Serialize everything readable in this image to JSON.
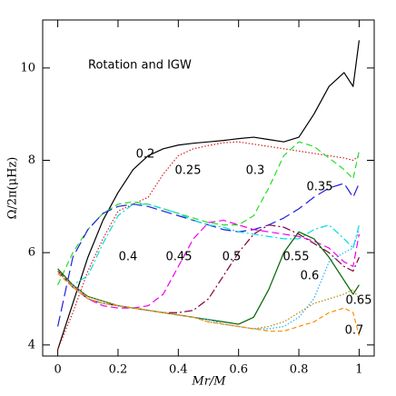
{
  "chart_data": {
    "type": "line",
    "annotation": "Rotation and IGW",
    "xlabel": "Mr/M",
    "ylabel": "Ω/2π(μHz)",
    "xlim": [
      -0.05,
      1.05
    ],
    "ylim": [
      3.76,
      11.04
    ],
    "xticks": [
      0,
      0.2,
      0.4,
      0.6,
      0.8,
      1
    ],
    "yticks": [
      4,
      6,
      8,
      10
    ],
    "x": [
      0,
      0.05,
      0.1,
      0.15,
      0.2,
      0.25,
      0.3,
      0.35,
      0.4,
      0.45,
      0.5,
      0.55,
      0.6,
      0.65,
      0.7,
      0.75,
      0.8,
      0.85,
      0.9,
      0.95,
      0.98,
      1.0
    ],
    "series": [
      {
        "name": "0.2",
        "color": "#000000",
        "values": [
          3.9,
          4.9,
          5.9,
          6.7,
          7.3,
          7.8,
          8.1,
          8.25,
          8.33,
          8.37,
          8.4,
          8.43,
          8.47,
          8.5,
          8.45,
          8.4,
          8.5,
          9.0,
          9.6,
          9.9,
          9.6,
          10.6
        ]
      },
      {
        "name": "0.25",
        "color": "#d62020",
        "values": [
          3.9,
          4.7,
          5.6,
          6.3,
          6.9,
          7.05,
          7.2,
          7.7,
          8.1,
          8.25,
          8.32,
          8.38,
          8.4,
          8.35,
          8.3,
          8.25,
          8.2,
          8.15,
          8.1,
          8.05,
          8.0,
          8.1
        ]
      },
      {
        "name": "0.3",
        "color": "#22dd22",
        "values": [
          5.3,
          6.0,
          6.5,
          6.85,
          7.05,
          7.1,
          7.05,
          6.95,
          6.85,
          6.75,
          6.65,
          6.6,
          6.6,
          6.8,
          7.4,
          8.1,
          8.4,
          8.3,
          8.05,
          7.8,
          7.6,
          8.2
        ]
      },
      {
        "name": "0.35",
        "color": "#2020dd",
        "values": [
          4.4,
          5.9,
          6.5,
          6.85,
          7.0,
          7.05,
          7.0,
          6.9,
          6.8,
          6.7,
          6.6,
          6.5,
          6.45,
          6.5,
          6.6,
          6.75,
          6.95,
          7.2,
          7.4,
          7.5,
          7.2,
          7.5
        ]
      },
      {
        "name": "0.4",
        "color": "#00dddd",
        "values": [
          5.6,
          5.3,
          5.5,
          6.2,
          6.8,
          7.05,
          7.05,
          6.95,
          6.85,
          6.7,
          6.6,
          6.55,
          6.45,
          6.4,
          6.35,
          6.3,
          6.3,
          6.5,
          6.6,
          6.3,
          6.1,
          6.6
        ]
      },
      {
        "name": "0.45",
        "color": "#ee00ee",
        "values": [
          5.6,
          5.3,
          5.0,
          4.85,
          4.8,
          4.8,
          4.85,
          5.1,
          5.7,
          6.3,
          6.65,
          6.7,
          6.6,
          6.5,
          6.45,
          6.4,
          6.35,
          6.25,
          6.1,
          5.8,
          5.7,
          6.4
        ]
      },
      {
        "name": "0.5",
        "color": "#800040",
        "values": [
          5.6,
          5.25,
          5.0,
          4.9,
          4.85,
          4.8,
          4.75,
          4.7,
          4.7,
          4.75,
          5.0,
          5.5,
          6.0,
          6.4,
          6.6,
          6.55,
          6.4,
          6.2,
          6.0,
          5.7,
          5.6,
          5.9
        ]
      },
      {
        "name": "0.55",
        "color": "#006400",
        "values": [
          5.65,
          5.3,
          5.05,
          4.95,
          4.85,
          4.8,
          4.75,
          4.7,
          4.65,
          4.6,
          4.55,
          4.5,
          4.45,
          4.6,
          5.2,
          6.0,
          6.45,
          6.3,
          5.9,
          5.4,
          5.1,
          5.3
        ]
      },
      {
        "name": "0.6",
        "color": "#20b0ff",
        "values": [
          5.6,
          5.25,
          5.0,
          4.9,
          4.85,
          4.8,
          4.75,
          4.7,
          4.65,
          4.6,
          4.55,
          4.45,
          4.4,
          4.35,
          4.35,
          4.4,
          4.6,
          5.0,
          5.8,
          6.0,
          6.1,
          6.5
        ]
      },
      {
        "name": "0.65",
        "color": "#b8860b",
        "values": [
          5.6,
          5.3,
          5.05,
          4.95,
          4.85,
          4.8,
          4.75,
          4.7,
          4.65,
          4.6,
          4.5,
          4.45,
          4.4,
          4.35,
          4.4,
          4.5,
          4.7,
          4.9,
          5.0,
          5.1,
          5.2,
          5.0
        ]
      },
      {
        "name": "0.7",
        "color": "#ff8c00",
        "values": [
          5.55,
          5.25,
          5.0,
          4.9,
          4.85,
          4.8,
          4.75,
          4.7,
          4.65,
          4.6,
          4.5,
          4.45,
          4.4,
          4.35,
          4.3,
          4.3,
          4.4,
          4.5,
          4.7,
          4.8,
          4.7,
          4.2
        ]
      }
    ]
  }
}
